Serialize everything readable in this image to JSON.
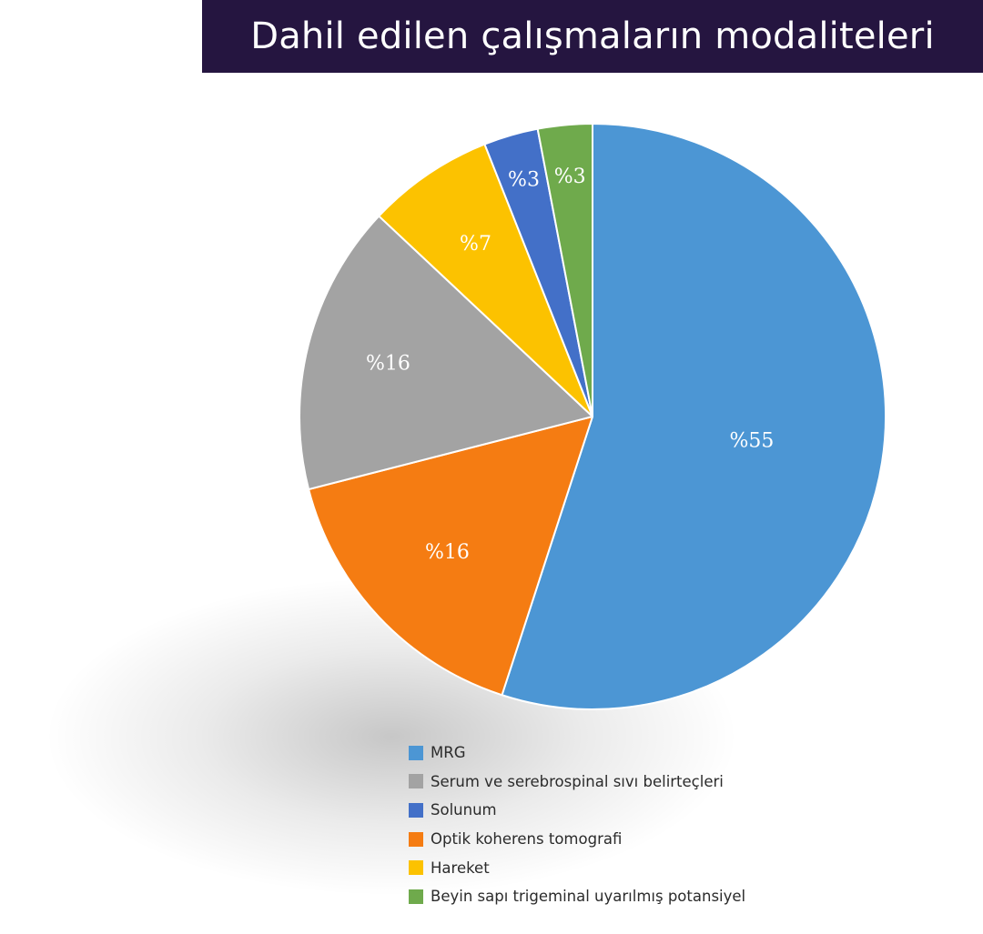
{
  "chart_data": {
    "type": "pie",
    "title": "Dahil edilen çalışmaların modaliteleri",
    "slices": [
      {
        "name": "MRG",
        "value": 55,
        "label": "%55",
        "color": "#4c96d4"
      },
      {
        "name": "Optik koherens tomografi",
        "value": 16,
        "label": "%16",
        "color": "#f57c12"
      },
      {
        "name": "Serum ve serebrospinal sıvı belirteçleri",
        "value": 16,
        "label": "%16",
        "color": "#a3a3a3"
      },
      {
        "name": "Hareket",
        "value": 7,
        "label": "%7",
        "color": "#fcc200"
      },
      {
        "name": "Solunum",
        "value": 3,
        "label": "%3",
        "color": "#4370c8"
      },
      {
        "name": "Beyin sapı trigeminal uyarılmış potansiyel",
        "value": 3,
        "label": "%3",
        "color": "#6faa4c"
      }
    ],
    "legend": [
      {
        "name": "MRG",
        "color": "#4c96d4"
      },
      {
        "name": "Serum ve serebrospinal sıvı belirteçleri",
        "color": "#a3a3a3"
      },
      {
        "name": "Solunum",
        "color": "#4370c8"
      },
      {
        "name": "Optik koherens tomografi",
        "color": "#f57c12"
      },
      {
        "name": "Hareket",
        "color": "#fcc200"
      },
      {
        "name": "Beyin sapı trigeminal uyarılmış potansiyel",
        "color": "#6faa4c"
      }
    ],
    "legend_position": "bottom"
  },
  "colors": {
    "title_background": "#251540",
    "title_text": "#ffffff",
    "slice_label": "#ffffff"
  }
}
